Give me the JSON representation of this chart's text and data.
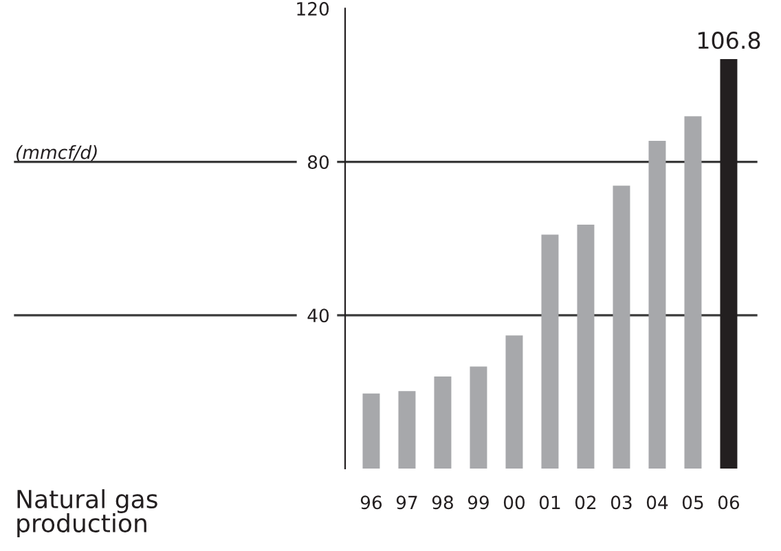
{
  "chart_data": {
    "type": "bar",
    "title": "Natural gas\nproduction",
    "annotations": [
      "(mmcf/d)"
    ],
    "categories": [
      "96",
      "97",
      "98",
      "99",
      "00",
      "01",
      "02",
      "03",
      "04",
      "05",
      "06"
    ],
    "values": [
      19.6,
      20.2,
      24.0,
      26.6,
      34.7,
      61.0,
      63.6,
      73.8,
      85.5,
      91.9,
      106.8
    ],
    "colors": [
      "#a7a8ab",
      "#a7a8ab",
      "#a7a8ab",
      "#a7a8ab",
      "#a7a8ab",
      "#a7a8ab",
      "#a7a8ab",
      "#a7a8ab",
      "#a7a8ab",
      "#a7a8ab",
      "#231f20"
    ],
    "value_labels": [
      null,
      null,
      null,
      null,
      null,
      null,
      null,
      null,
      null,
      null,
      "106.8"
    ],
    "ylim": [
      0,
      120
    ],
    "yticks": [
      40,
      80,
      120
    ],
    "ref_lines": [
      {
        "axis": "y",
        "value": 40
      },
      {
        "axis": "y",
        "value": 80
      }
    ]
  }
}
